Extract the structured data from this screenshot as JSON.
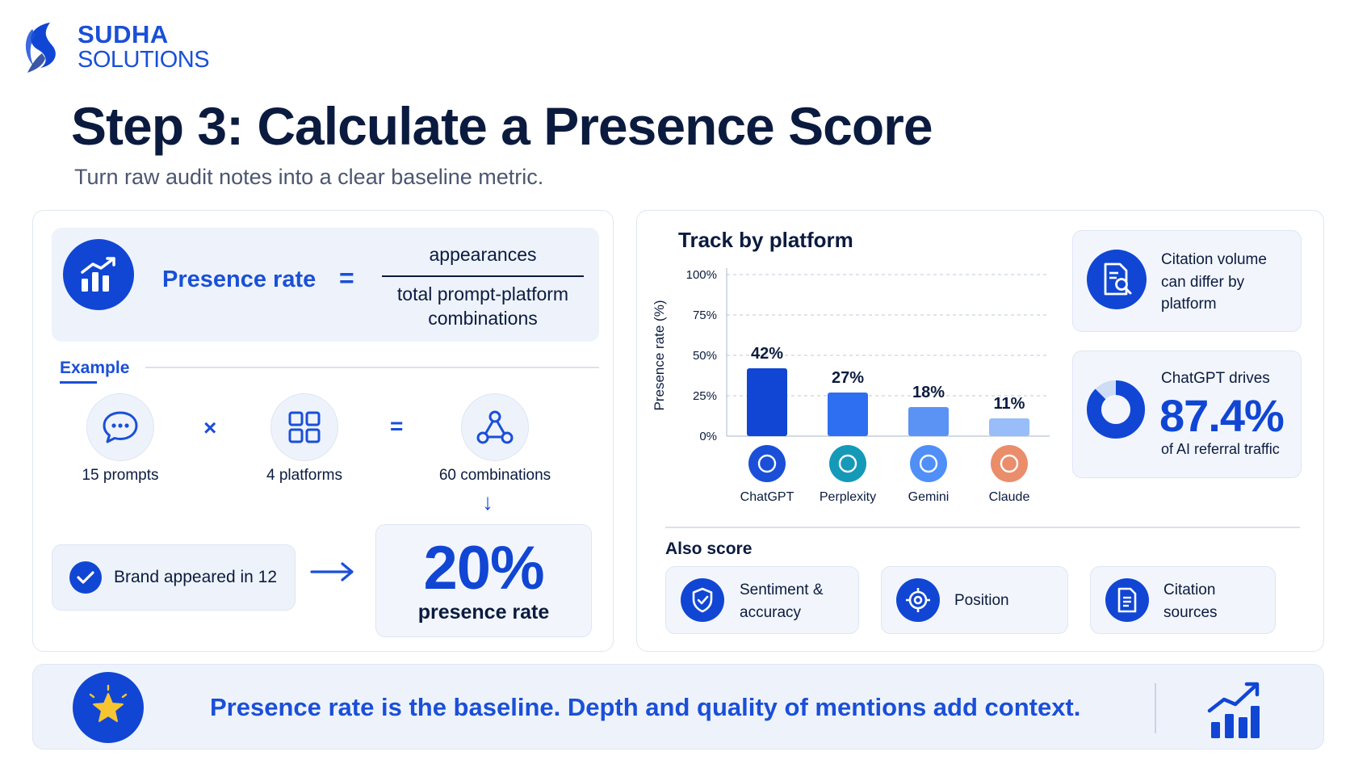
{
  "brand": {
    "name_top": "SUDHA",
    "name_bottom": "SOLUTIONS"
  },
  "title": "Step 3: Calculate a Presence Score",
  "subtitle": "Turn raw audit notes into a clear baseline metric.",
  "formula": {
    "label": "Presence rate",
    "equals": "=",
    "numerator": "appearances",
    "denominator": "total prompt-platform combinations"
  },
  "example": {
    "label": "Example",
    "prompts": "15 prompts",
    "multiply": "×",
    "platforms": "4 platforms",
    "equals": "=",
    "combinations": "60 combinations",
    "down_arrow": "↓",
    "brand_appeared": "Brand appeared in 12",
    "result_value": "20%",
    "result_label": "presence rate"
  },
  "chart_data": {
    "type": "bar",
    "title": "Track by platform",
    "ylabel": "Presence rate (%)",
    "xlabel": "",
    "ylim": [
      0,
      100
    ],
    "yticks": [
      "0%",
      "25%",
      "50%",
      "75%",
      "100%"
    ],
    "categories": [
      "ChatGPT",
      "Perplexity",
      "Gemini",
      "Claude"
    ],
    "values": [
      42,
      27,
      18,
      11
    ],
    "value_labels": [
      "42%",
      "27%",
      "18%",
      "11%"
    ],
    "colors": [
      "#1146d4",
      "#2e6ef0",
      "#5b93f5",
      "#98bdf9"
    ],
    "icon_colors": [
      "#1a4fd8",
      "#1599b8",
      "#4f8ff7",
      "#ea8d6b"
    ],
    "grid": true
  },
  "cards": {
    "citation_volume": "Citation volume can differ by platform",
    "chatgpt_intro": "ChatGPT drives",
    "chatgpt_value": "87.4%",
    "chatgpt_value_fraction": 0.874,
    "chatgpt_foot": "of AI referral traffic"
  },
  "also_score": {
    "title": "Also score",
    "items": [
      "Sentiment & accuracy",
      "Position",
      "Citation sources"
    ]
  },
  "bottom": {
    "text": "Presence rate is the baseline. Depth and quality of mentions add context."
  },
  "colors": {
    "primary": "#1146d4",
    "accent": "#1a4fd8",
    "dark": "#0b1b3f",
    "soft_bg": "#eef3fb"
  }
}
